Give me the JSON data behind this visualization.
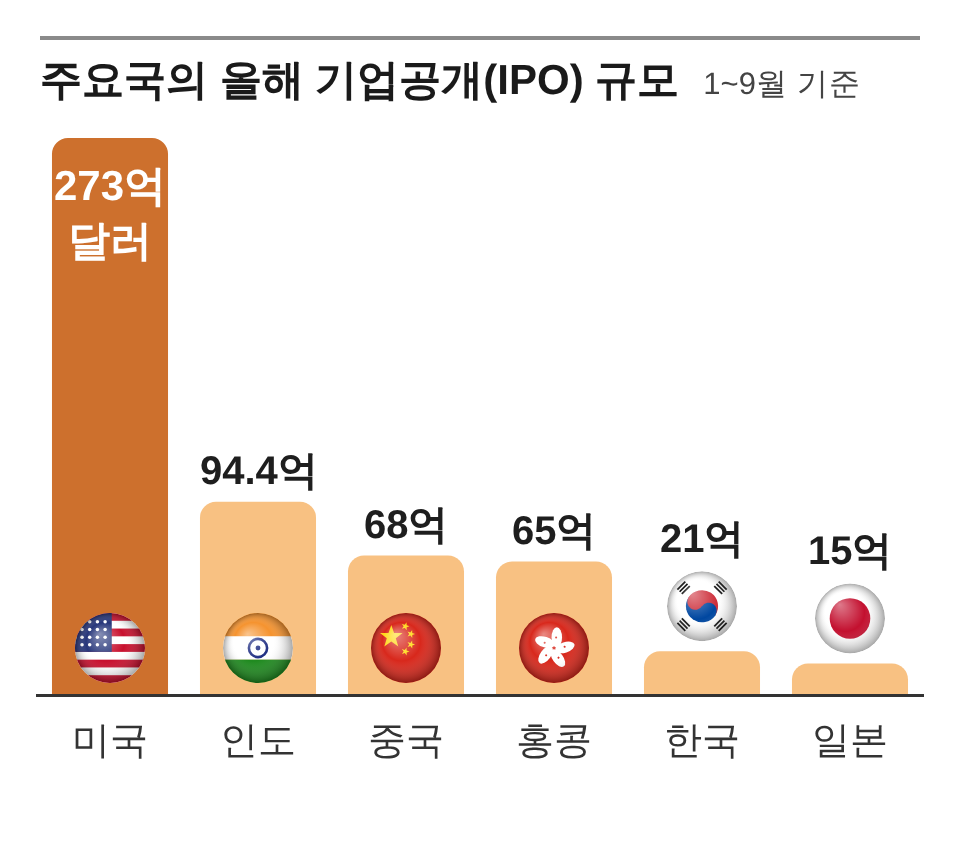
{
  "chart_data": {
    "type": "bar",
    "title": "주요국의 올해 기업공개(IPO) 규모",
    "subtitle": "1~9월 기준",
    "categories": [
      "미국",
      "인도",
      "중국",
      "홍콩",
      "한국",
      "일본"
    ],
    "values": [
      273,
      94.4,
      68,
      65,
      21,
      15
    ],
    "colors": [
      "#cd702d",
      "#f8c182",
      "#f8c182",
      "#f8c182",
      "#f8c182",
      "#f8c182"
    ],
    "value_labels": [
      "273억 달러",
      "94.4억",
      "68억",
      "65억",
      "21억",
      "15억"
    ],
    "tick_labels": "x",
    "grid": false,
    "legend": false
  }
}
